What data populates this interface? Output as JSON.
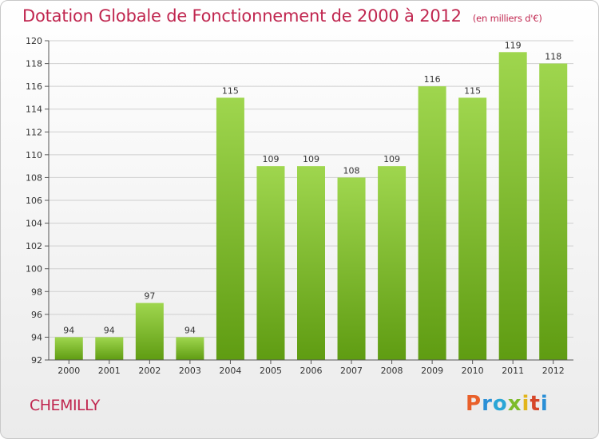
{
  "header": {
    "title": "Dotation Globale de Fonctionnement de 2000 à 2012",
    "subtitle": "(en milliers d'€)"
  },
  "footer": {
    "commune": "CHEMILLY",
    "brand": "Proxiti"
  },
  "colors": {
    "title": "#c0264f",
    "bar_top": "#9fd64e",
    "bar_bottom": "#5f9c12",
    "brand_letters": [
      "#e9602a",
      "#2a8fd6",
      "#2aa6d6",
      "#7dbb2a",
      "#e2b51c",
      "#d6472a",
      "#2a8fd6"
    ]
  },
  "chart_data": {
    "type": "bar",
    "categories": [
      "2000",
      "2001",
      "2002",
      "2003",
      "2004",
      "2005",
      "2006",
      "2007",
      "2008",
      "2009",
      "2010",
      "2011",
      "2012"
    ],
    "values": [
      94,
      94,
      97,
      94,
      115,
      109,
      109,
      108,
      109,
      116,
      115,
      119,
      118
    ],
    "title": "Dotation Globale de Fonctionnement de 2000 à 2012",
    "xlabel": "",
    "ylabel": "",
    "ylim": [
      92,
      120
    ],
    "yticks": [
      92,
      94,
      96,
      98,
      100,
      102,
      104,
      106,
      108,
      110,
      112,
      114,
      116,
      118,
      120
    ],
    "grid": true,
    "legend": "none"
  }
}
